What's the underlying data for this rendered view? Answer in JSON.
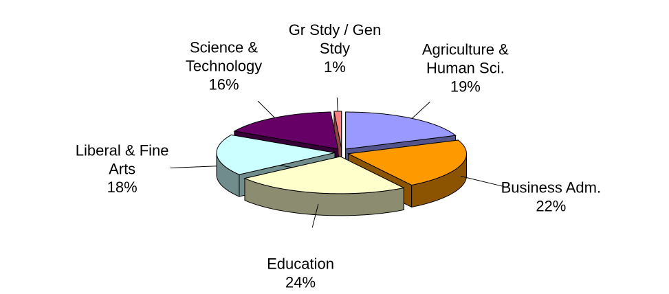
{
  "chart_data": {
    "type": "pie3d",
    "categories": [
      "Agriculture & Human Sci.",
      "Business Adm.",
      "Education",
      "Liberal & Fine Arts",
      "Science & Technology",
      "Gr Stdy / Gen Stdy"
    ],
    "values": [
      19,
      22,
      24,
      18,
      16,
      1
    ],
    "value_labels": [
      "19%",
      "22%",
      "24%",
      "18%",
      "16%",
      "1%"
    ],
    "colors": [
      "#9999ff",
      "#ff9900",
      "#ffffcc",
      "#ccffff",
      "#660066",
      "#ff8080"
    ]
  }
}
